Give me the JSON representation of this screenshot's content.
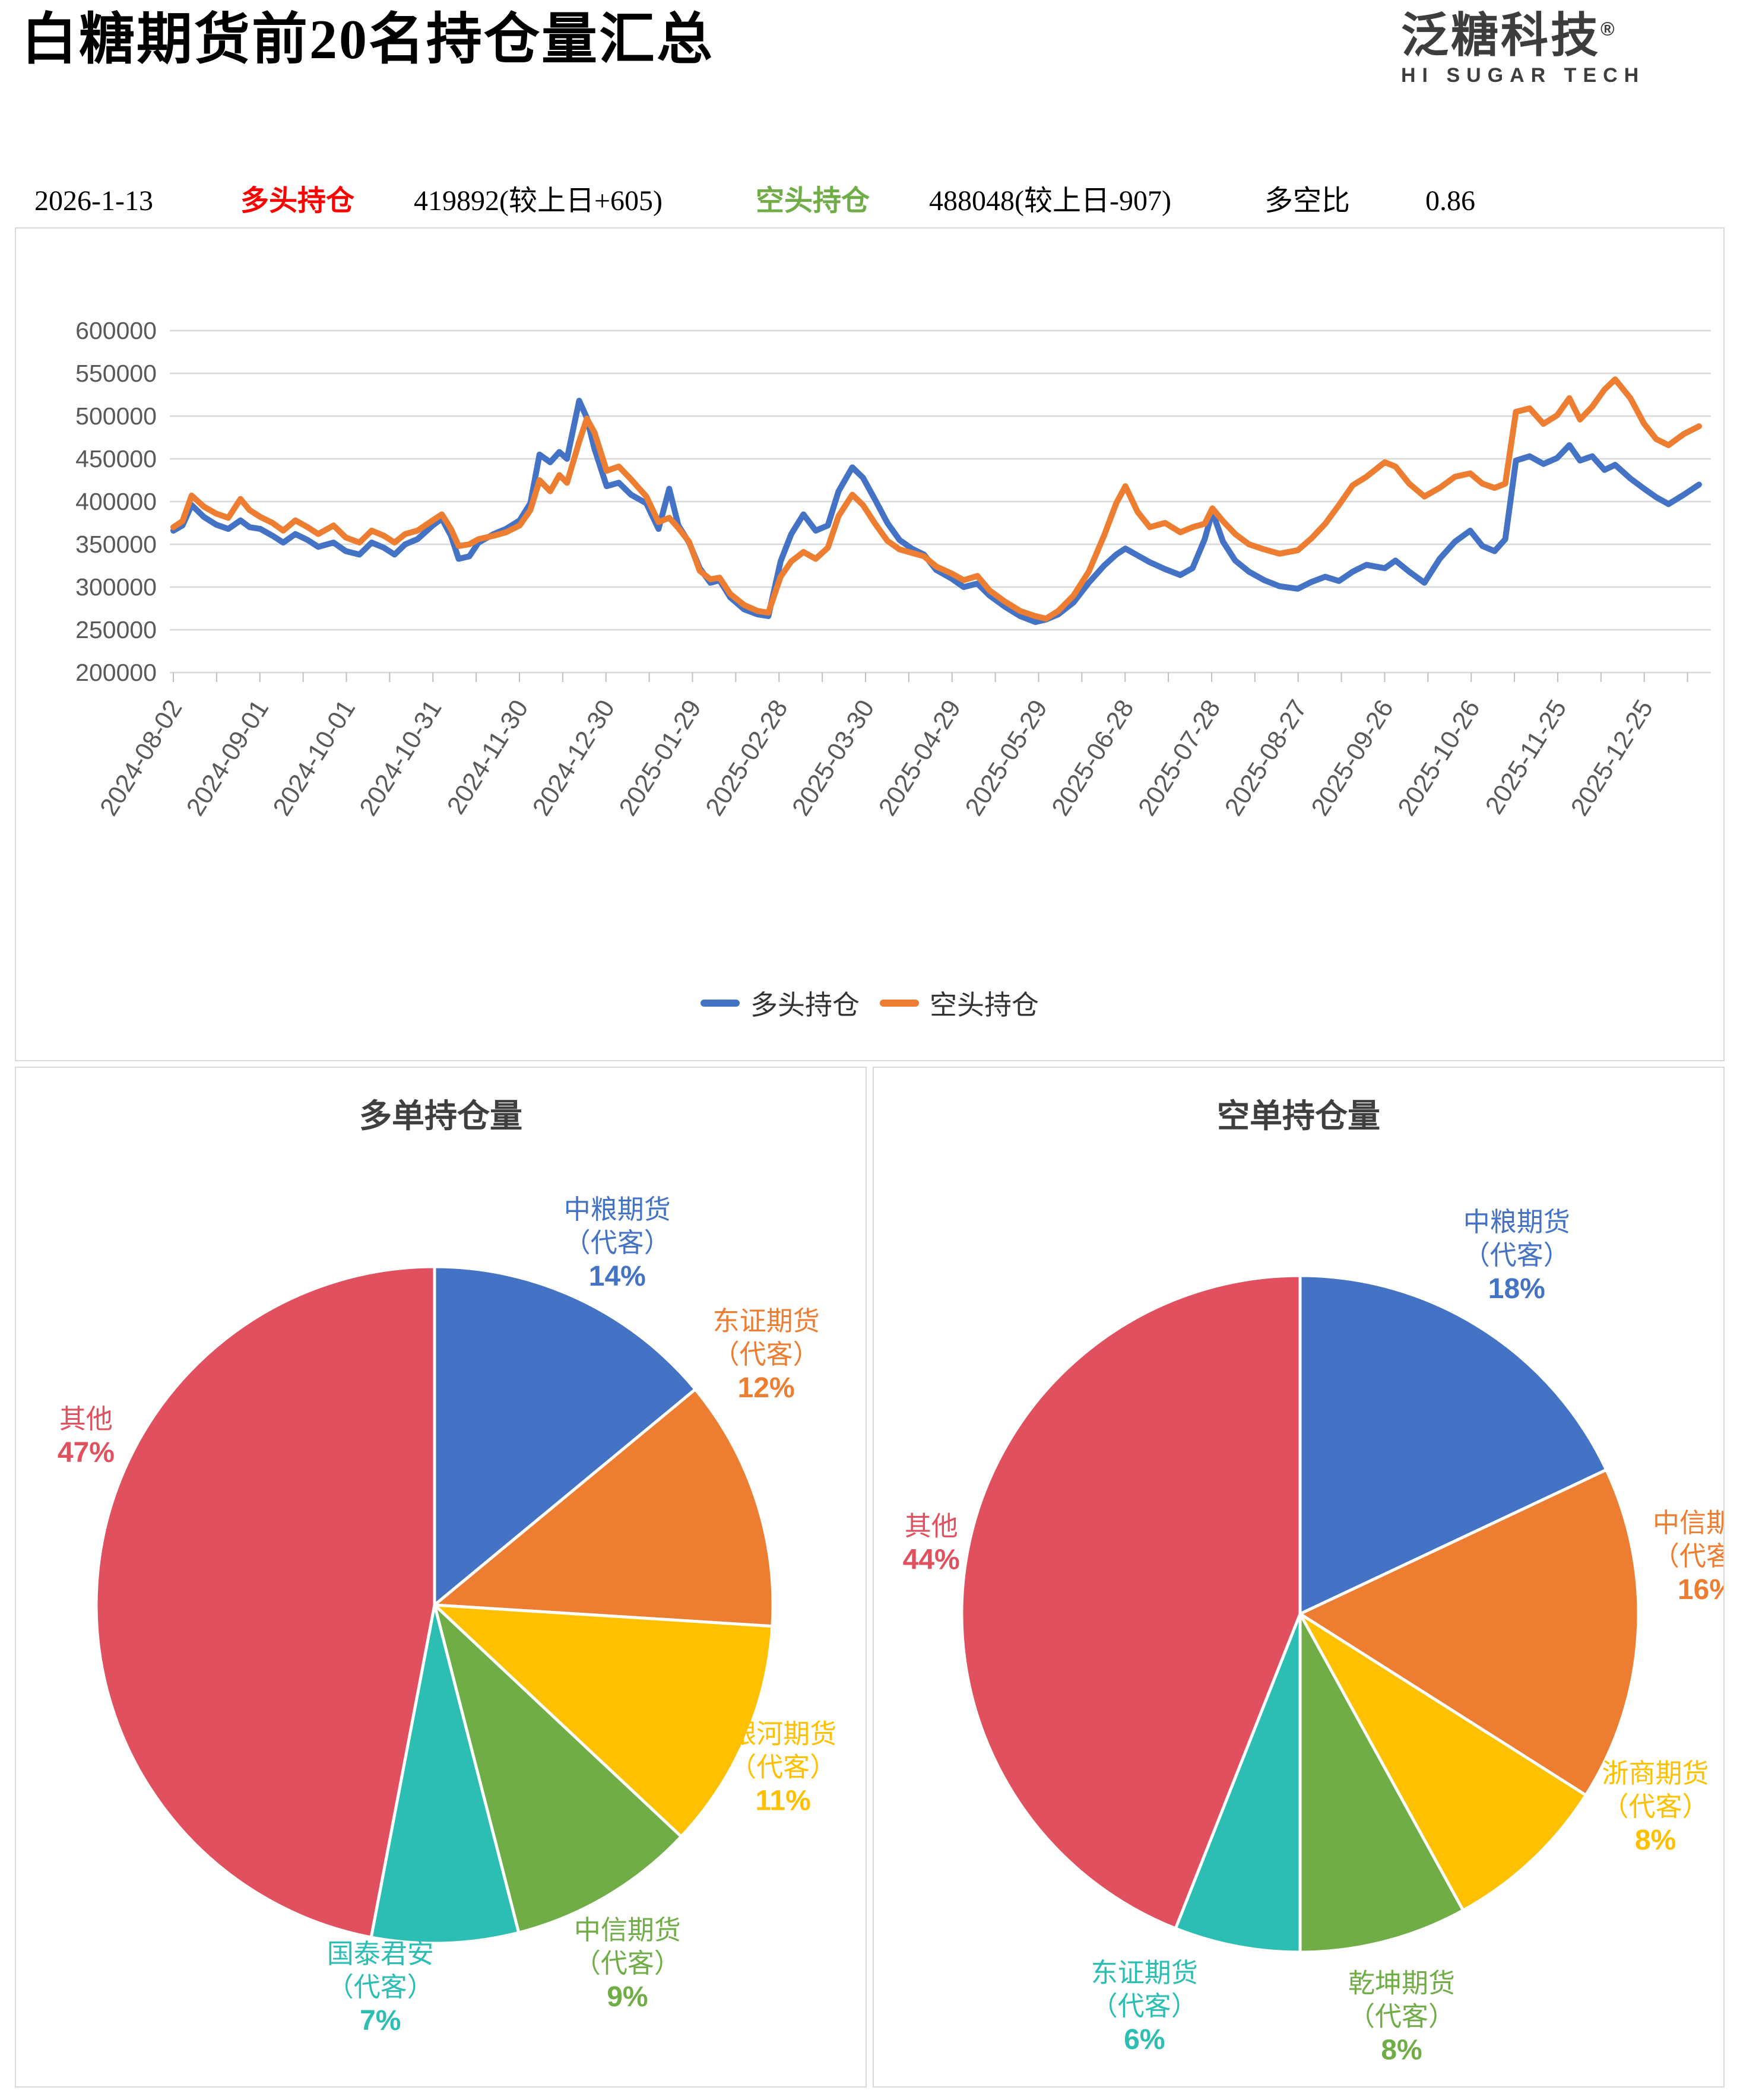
{
  "header": {
    "title": "白糖期货前20名持仓量汇总",
    "logo": {
      "brand": "泛糖科技",
      "registered": "®",
      "subtitle": "HI SUGAR TECH"
    },
    "date": "2026-1-13",
    "long_label": "多头持仓",
    "long_value": "419892(较上日+605)",
    "short_label": "空头持仓",
    "short_value": "488048(较上日-907)",
    "ratio_label": "多空比",
    "ratio_value": "0.86"
  },
  "colors": {
    "long_accent": "#FF0000",
    "short_accent": "#70AD47",
    "series_long": "#4472C4",
    "series_short": "#ED7D31",
    "grid": "#D9D9D9",
    "axis_text": "#595959",
    "legend_text": "#3f3f3f"
  },
  "chart_data": [
    {
      "id": "holdings-trend",
      "type": "line",
      "title": "",
      "ylabel": "",
      "ylim": [
        200000,
        600000
      ],
      "ytick_step": 50000,
      "grid": true,
      "legend_position": "bottom",
      "x_tick_labels": [
        "2024-08-02",
        "2024-09-01",
        "2024-10-01",
        "2024-10-31",
        "2024-11-30",
        "2024-12-30",
        "2025-01-29",
        "2025-02-28",
        "2025-03-30",
        "2025-04-29",
        "2025-05-29",
        "2025-06-28",
        "2025-07-28",
        "2025-08-27",
        "2025-09-26",
        "2025-10-26",
        "2025-11-25",
        "2025-12-25"
      ],
      "x": [
        0.0,
        0.006,
        0.012,
        0.02,
        0.028,
        0.036,
        0.044,
        0.05,
        0.057,
        0.065,
        0.072,
        0.08,
        0.088,
        0.095,
        0.105,
        0.113,
        0.122,
        0.13,
        0.138,
        0.145,
        0.152,
        0.16,
        0.17,
        0.176,
        0.182,
        0.187,
        0.194,
        0.2,
        0.21,
        0.218,
        0.227,
        0.234,
        0.24,
        0.247,
        0.253,
        0.258,
        0.266,
        0.271,
        0.276,
        0.284,
        0.292,
        0.3,
        0.31,
        0.318,
        0.325,
        0.331,
        0.338,
        0.345,
        0.352,
        0.358,
        0.365,
        0.374,
        0.383,
        0.39,
        0.398,
        0.405,
        0.413,
        0.421,
        0.429,
        0.436,
        0.445,
        0.452,
        0.46,
        0.468,
        0.476,
        0.484,
        0.492,
        0.5,
        0.51,
        0.518,
        0.527,
        0.535,
        0.545,
        0.555,
        0.565,
        0.572,
        0.58,
        0.59,
        0.6,
        0.61,
        0.618,
        0.624,
        0.632,
        0.64,
        0.65,
        0.66,
        0.668,
        0.676,
        0.681,
        0.688,
        0.696,
        0.705,
        0.715,
        0.725,
        0.737,
        0.746,
        0.755,
        0.764,
        0.773,
        0.782,
        0.794,
        0.801,
        0.81,
        0.82,
        0.83,
        0.84,
        0.85,
        0.858,
        0.866,
        0.873,
        0.88,
        0.889,
        0.898,
        0.907,
        0.915,
        0.922,
        0.93,
        0.938,
        0.945,
        0.955,
        0.964,
        0.972,
        0.98,
        0.99,
        1.0
      ],
      "series": [
        {
          "name": "多头持仓",
          "color": "#4472C4",
          "values": [
            366000,
            372000,
            396000,
            382000,
            373000,
            368000,
            378000,
            370000,
            368000,
            360000,
            352000,
            362000,
            355000,
            347000,
            352000,
            342000,
            338000,
            352000,
            346000,
            338000,
            350000,
            356000,
            372000,
            380000,
            360000,
            333000,
            336000,
            352000,
            362000,
            368000,
            378000,
            398000,
            455000,
            446000,
            458000,
            450000,
            518000,
            498000,
            462000,
            418000,
            422000,
            408000,
            398000,
            368000,
            415000,
            372000,
            352000,
            322000,
            305000,
            308000,
            288000,
            274000,
            268000,
            266000,
            330000,
            362000,
            385000,
            366000,
            372000,
            412000,
            440000,
            428000,
            402000,
            375000,
            355000,
            345000,
            338000,
            320000,
            310000,
            300000,
            304000,
            290000,
            277000,
            266000,
            259000,
            262000,
            268000,
            282000,
            305000,
            325000,
            338000,
            345000,
            337000,
            329000,
            321000,
            314000,
            322000,
            356000,
            388000,
            353000,
            331000,
            318000,
            308000,
            301000,
            298000,
            306000,
            312000,
            307000,
            318000,
            326000,
            322000,
            331000,
            318000,
            305000,
            333000,
            353000,
            366000,
            348000,
            342000,
            356000,
            448000,
            453000,
            444000,
            451000,
            466000,
            448000,
            453000,
            437000,
            443000,
            427000,
            415000,
            405000,
            397000,
            408000,
            419892
          ]
        },
        {
          "name": "空头持仓",
          "color": "#ED7D31",
          "values": [
            370000,
            377000,
            407000,
            394000,
            386000,
            381000,
            403000,
            390000,
            382000,
            375000,
            366000,
            378000,
            370000,
            362000,
            372000,
            358000,
            352000,
            366000,
            360000,
            352000,
            362000,
            366000,
            378000,
            385000,
            368000,
            348000,
            350000,
            356000,
            360000,
            364000,
            372000,
            390000,
            425000,
            412000,
            431000,
            422000,
            470000,
            497000,
            481000,
            436000,
            441000,
            426000,
            406000,
            376000,
            381000,
            369000,
            353000,
            319000,
            309000,
            311000,
            292000,
            279000,
            272000,
            270000,
            312000,
            330000,
            341000,
            333000,
            346000,
            383000,
            408000,
            396000,
            374000,
            354000,
            344000,
            340000,
            336000,
            324000,
            316000,
            308000,
            313000,
            296000,
            283000,
            272000,
            266000,
            263000,
            272000,
            290000,
            318000,
            360000,
            398000,
            418000,
            388000,
            370000,
            375000,
            364000,
            370000,
            374000,
            392000,
            377000,
            362000,
            350000,
            344000,
            339000,
            343000,
            357000,
            374000,
            396000,
            419000,
            429000,
            446000,
            441000,
            421000,
            406000,
            416000,
            429000,
            433000,
            421000,
            416000,
            421000,
            505000,
            509000,
            491000,
            501000,
            521000,
            496000,
            511000,
            531000,
            543000,
            521000,
            491000,
            473000,
            466000,
            479000,
            488048
          ]
        }
      ]
    },
    {
      "id": "long-pie",
      "type": "pie",
      "title": "多单持仓量",
      "slices": [
        {
          "label": "中粮期货",
          "sublabel": "（代客）",
          "pct": 14,
          "color": "#4472C4"
        },
        {
          "label": "东证期货",
          "sublabel": "（代客）",
          "pct": 12,
          "color": "#ED7D31"
        },
        {
          "label": "银河期货",
          "sublabel": "（代客）",
          "pct": 11,
          "color": "#FFC000"
        },
        {
          "label": "中信期货",
          "sublabel": "（代客）",
          "pct": 9,
          "color": "#70AD47"
        },
        {
          "label": "国泰君安",
          "sublabel": "（代客）",
          "pct": 7,
          "color": "#2CBDB3"
        },
        {
          "label": "其他",
          "sublabel": "",
          "pct": 47,
          "color": "#E0505E"
        }
      ]
    },
    {
      "id": "short-pie",
      "type": "pie",
      "title": "空单持仓量",
      "slices": [
        {
          "label": "中粮期货",
          "sublabel": "（代客）",
          "pct": 18,
          "color": "#4472C4"
        },
        {
          "label": "中信期货",
          "sublabel": "（代客）",
          "pct": 16,
          "color": "#ED7D31"
        },
        {
          "label": "浙商期货",
          "sublabel": "（代客）",
          "pct": 8,
          "color": "#FFC000"
        },
        {
          "label": "乾坤期货",
          "sublabel": "（代客）",
          "pct": 8,
          "color": "#70AD47"
        },
        {
          "label": "东证期货",
          "sublabel": "（代客）",
          "pct": 6,
          "color": "#2CBDB3"
        },
        {
          "label": "其他",
          "sublabel": "",
          "pct": 44,
          "color": "#E0505E"
        }
      ]
    }
  ]
}
